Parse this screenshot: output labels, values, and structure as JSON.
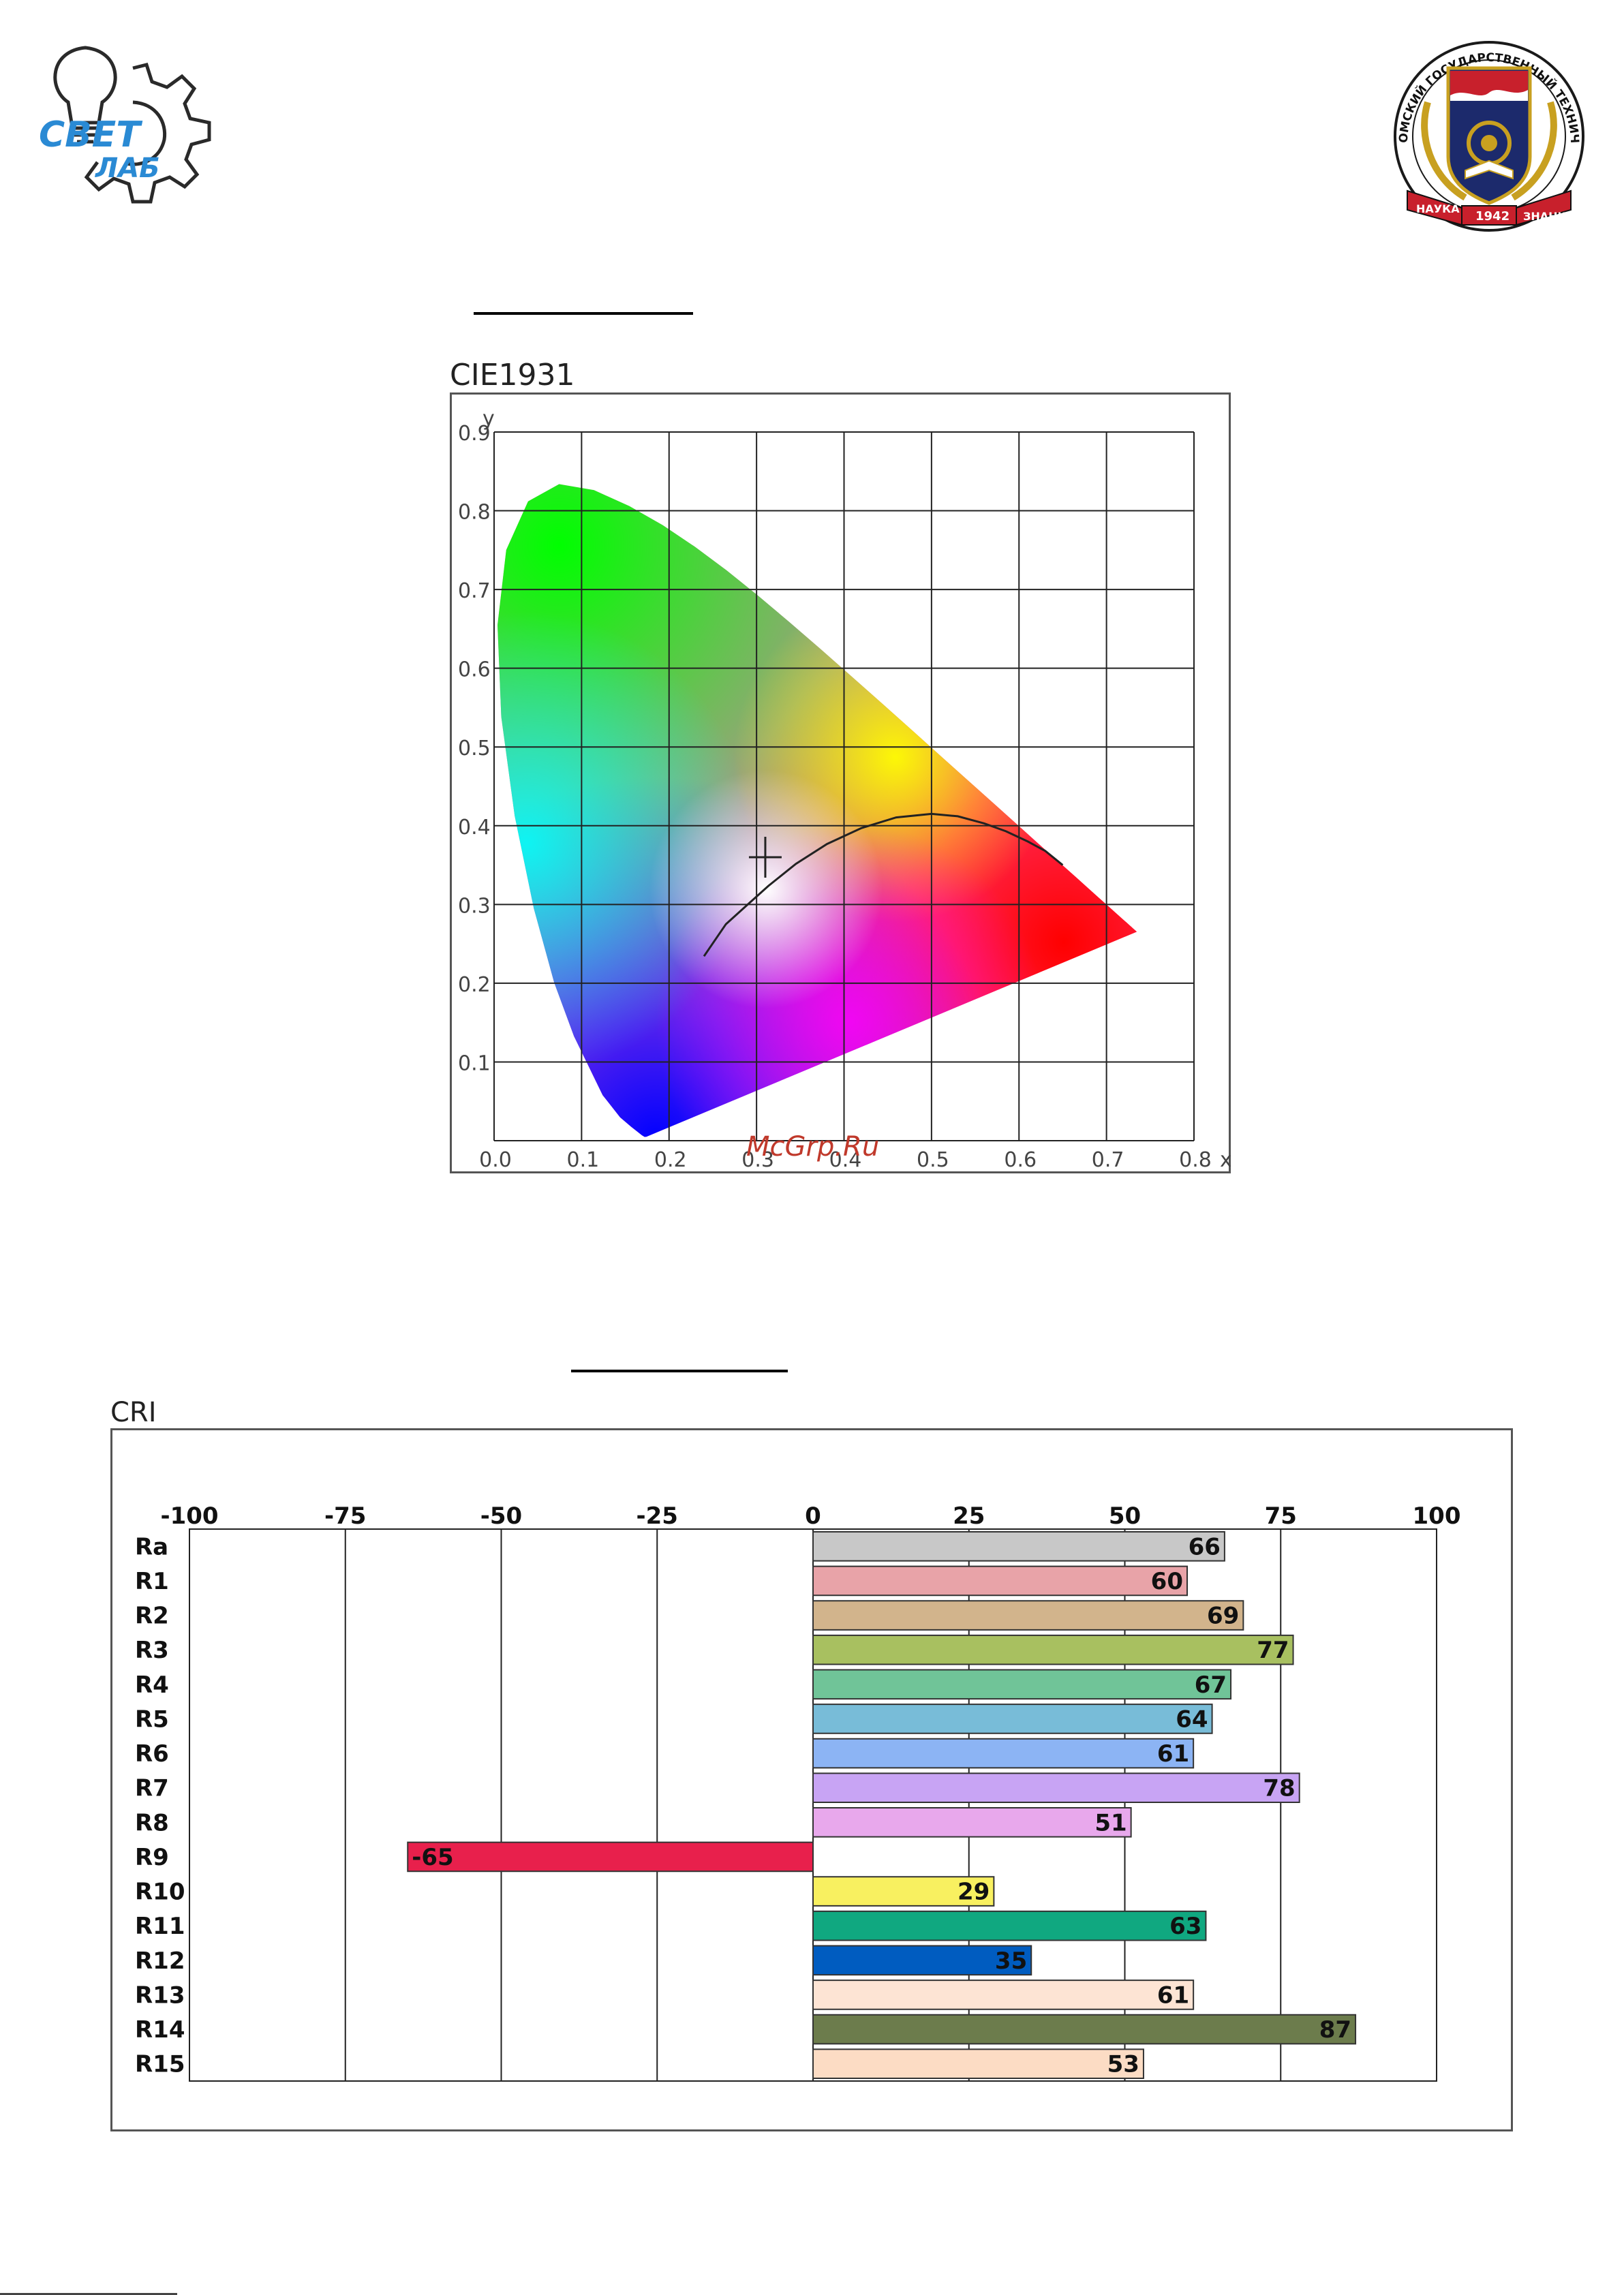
{
  "logos": {
    "left_text_line1": "СВЕТ",
    "left_text_line2": "ЛАБ",
    "right_ring_text": "ОМСКИЙ ГОСУДАРСТВЕННЫЙ ТЕХНИЧЕСКИЙ УНИВЕРСИТЕТ",
    "right_ribbon_left": "НАУКА",
    "right_ribbon_mid": "1942",
    "right_ribbon_right": "ЗНАНИЕ"
  },
  "watermark": "McGrp.Ru",
  "colors": {
    "grid": "#222222",
    "frame": "#555555",
    "bar_outline": "#333333"
  },
  "chart_data": [
    {
      "type": "scatter",
      "title": "CIE1931",
      "xlabel": "x",
      "ylabel": "y",
      "xlim": [
        0.0,
        0.8
      ],
      "ylim": [
        0.0,
        0.9
      ],
      "grid": true,
      "x_ticks": [
        "0.0",
        "0.1",
        "0.2",
        "0.3",
        "0.4",
        "0.5",
        "0.6",
        "0.7",
        "0.8"
      ],
      "y_ticks": [
        "0.1",
        "0.2",
        "0.3",
        "0.4",
        "0.5",
        "0.6",
        "0.7",
        "0.8",
        "0.9"
      ],
      "spectral_locus": [
        [
          0.1741,
          0.005
        ],
        [
          0.1738,
          0.0049
        ],
        [
          0.1721,
          0.0048
        ],
        [
          0.1689,
          0.0069
        ],
        [
          0.1644,
          0.0109
        ],
        [
          0.1566,
          0.0177
        ],
        [
          0.144,
          0.0297
        ],
        [
          0.1241,
          0.0578
        ],
        [
          0.0913,
          0.1327
        ],
        [
          0.0687,
          0.2007
        ],
        [
          0.0454,
          0.295
        ],
        [
          0.0235,
          0.4127
        ],
        [
          0.0082,
          0.5384
        ],
        [
          0.0039,
          0.6548
        ],
        [
          0.0139,
          0.7502
        ],
        [
          0.0389,
          0.812
        ],
        [
          0.0743,
          0.8338
        ],
        [
          0.1142,
          0.8262
        ],
        [
          0.1547,
          0.8059
        ],
        [
          0.1929,
          0.7816
        ],
        [
          0.2296,
          0.7543
        ],
        [
          0.2658,
          0.7243
        ],
        [
          0.3016,
          0.6923
        ],
        [
          0.3373,
          0.6589
        ],
        [
          0.3731,
          0.6245
        ],
        [
          0.4087,
          0.5896
        ],
        [
          0.4441,
          0.5547
        ],
        [
          0.4788,
          0.5202
        ],
        [
          0.5125,
          0.4866
        ],
        [
          0.5448,
          0.4544
        ],
        [
          0.5752,
          0.4242
        ],
        [
          0.6029,
          0.3965
        ],
        [
          0.627,
          0.3725
        ],
        [
          0.6482,
          0.3514
        ],
        [
          0.6658,
          0.334
        ],
        [
          0.6801,
          0.3197
        ],
        [
          0.6915,
          0.3083
        ],
        [
          0.7006,
          0.2993
        ],
        [
          0.7079,
          0.292
        ],
        [
          0.714,
          0.2859
        ],
        [
          0.719,
          0.2809
        ],
        [
          0.723,
          0.277
        ],
        [
          0.726,
          0.274
        ],
        [
          0.7283,
          0.2717
        ],
        [
          0.73,
          0.27
        ],
        [
          0.7311,
          0.2689
        ],
        [
          0.732,
          0.268
        ],
        [
          0.7327,
          0.2673
        ],
        [
          0.7334,
          0.2666
        ],
        [
          0.734,
          0.266
        ],
        [
          0.7344,
          0.2656
        ],
        [
          0.7347,
          0.2653
        ]
      ],
      "planckian_locus": [
        [
          0.2399,
          0.2343
        ],
        [
          0.265,
          0.275
        ],
        [
          0.29,
          0.3
        ],
        [
          0.3135,
          0.3236
        ],
        [
          0.345,
          0.3516
        ],
        [
          0.3805,
          0.3768
        ],
        [
          0.42,
          0.397
        ],
        [
          0.4596,
          0.4105
        ],
        [
          0.5,
          0.415
        ],
        [
          0.53,
          0.412
        ],
        [
          0.56,
          0.403
        ],
        [
          0.585,
          0.393
        ],
        [
          0.61,
          0.38
        ],
        [
          0.63,
          0.368
        ],
        [
          0.65,
          0.35
        ]
      ],
      "measured_point": {
        "x": 0.31,
        "y": 0.36
      }
    },
    {
      "type": "bar",
      "title": "CRI",
      "orientation": "horizontal",
      "xlim": [
        -100,
        100
      ],
      "x_ticks": [
        "-100",
        "-75",
        "-50",
        "-25",
        "0",
        "25",
        "50",
        "75",
        "100"
      ],
      "grid": true,
      "categories": [
        "Ra",
        "R1",
        "R2",
        "R3",
        "R4",
        "R5",
        "R6",
        "R7",
        "R8",
        "R9",
        "R10",
        "R11",
        "R12",
        "R13",
        "R14",
        "R15"
      ],
      "values": [
        66,
        60,
        69,
        77,
        67,
        64,
        61,
        78,
        51,
        -65,
        29,
        63,
        35,
        61,
        87,
        53
      ],
      "labels": [
        "66",
        "60",
        "69",
        "77",
        "67",
        "64",
        "61",
        "78",
        "51",
        "-65",
        "29",
        "63",
        "35",
        "61",
        "87",
        "53"
      ],
      "colors": [
        "#c8c8c8",
        "#e8a3a8",
        "#d2b48c",
        "#a8c060",
        "#70c498",
        "#78bcd8",
        "#8cb4f4",
        "#c8a4f4",
        "#e8a8ec",
        "#e8204c",
        "#f8f060",
        "#10a880",
        "#005cc0",
        "#fde4d4",
        "#6c7c4c",
        "#fcdcc4"
      ]
    }
  ]
}
